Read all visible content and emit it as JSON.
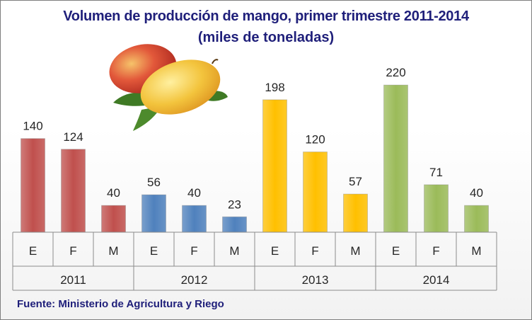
{
  "title_line1": "Volumen de producción de mango, primer trimestre  2011-2014",
  "title_line2": "(miles  de toneladas)",
  "source": "Fuente: Ministerio de Agricultura y Riego",
  "colors": {
    "title": "#1f1f7a",
    "2011": "#c0504d",
    "2012": "#4f81bd",
    "2013": "#ffc000",
    "2014": "#9bbb59"
  },
  "icons": [
    "mango-image"
  ],
  "chart_data": {
    "type": "bar",
    "categories": [
      "E",
      "F",
      "M",
      "E",
      "F",
      "M",
      "E",
      "F",
      "M",
      "E",
      "F",
      "M"
    ],
    "groups": [
      "2011",
      "2012",
      "2013",
      "2014"
    ],
    "values": [
      140,
      124,
      40,
      56,
      40,
      23,
      198,
      120,
      57,
      220,
      71,
      40
    ],
    "title": "Volumen de producción de mango, primer trimestre  2011-2014",
    "subtitle": "(miles  de toneladas)",
    "data_labels": true,
    "grid": false,
    "legend": "none",
    "ylim": [
      0,
      250
    ]
  }
}
